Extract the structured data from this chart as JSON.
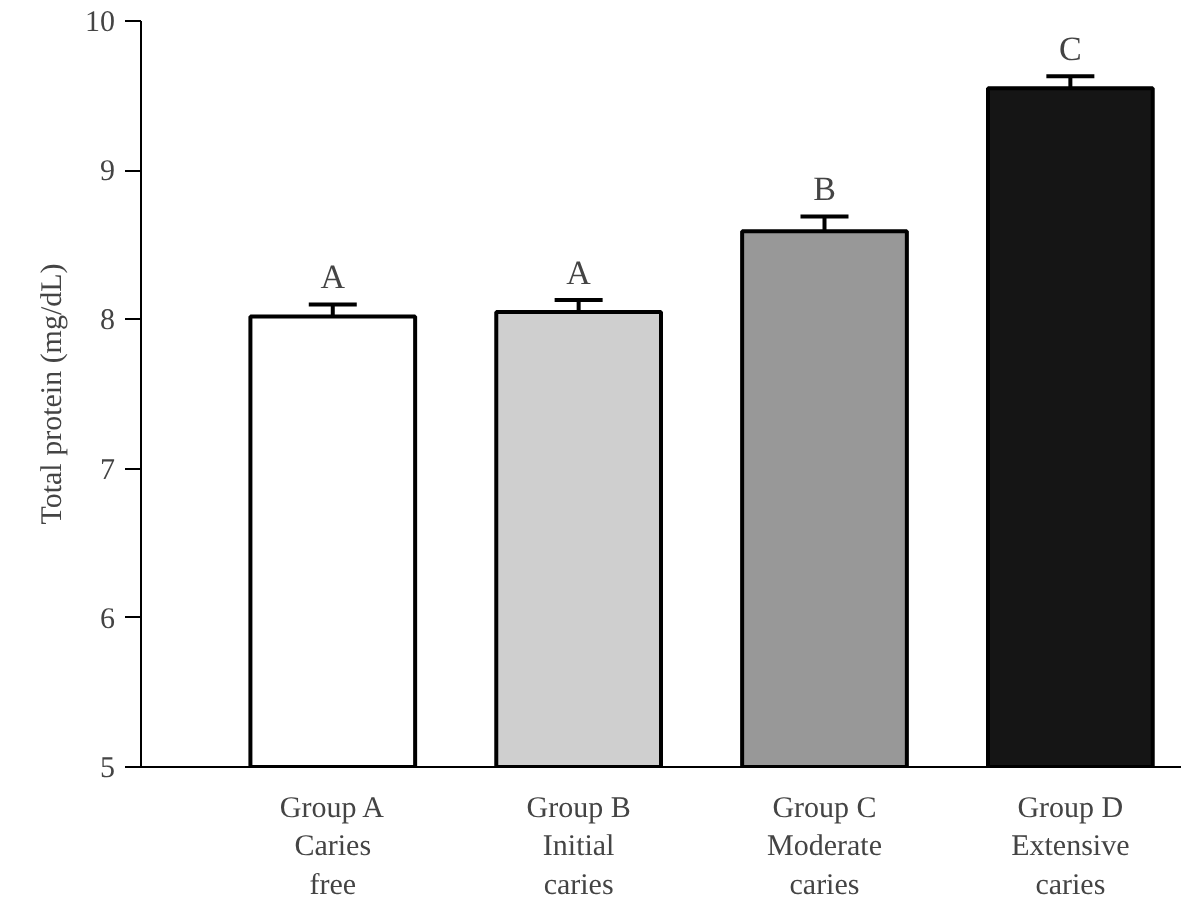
{
  "chart_data": {
    "type": "bar",
    "ylabel": "Total protein (mg/dL)",
    "categories": [
      "Group A\nCaries\nfree",
      "Group B\nInitial\ncaries",
      "Group C\nModerate\ncaries",
      "Group D\nExtensive\ncaries"
    ],
    "values": [
      8.02,
      8.05,
      8.59,
      9.55
    ],
    "errors": [
      [
        8.02,
        8.1
      ],
      [
        8.05,
        8.13
      ],
      [
        8.59,
        8.69
      ],
      [
        9.55,
        9.63
      ]
    ],
    "colors": [
      "#ffffff",
      "#cfcfcf",
      "#989898",
      "#151515"
    ],
    "ylim": [
      5,
      10
    ],
    "yticks": [
      5,
      6,
      7,
      8,
      9,
      10
    ],
    "grid": false,
    "annotations": [
      {
        "text": "A",
        "x": "Group A\nCaries\nfree",
        "y": 8.02
      },
      {
        "text": "A",
        "x": "Group B\nInitial\ncaries",
        "y": 8.05
      },
      {
        "text": "B",
        "x": "Group C\nModerate\ncaries",
        "y": 8.59
      },
      {
        "text": "C",
        "x": "Group D\nExtensive\ncaries",
        "y": 9.55
      }
    ]
  }
}
